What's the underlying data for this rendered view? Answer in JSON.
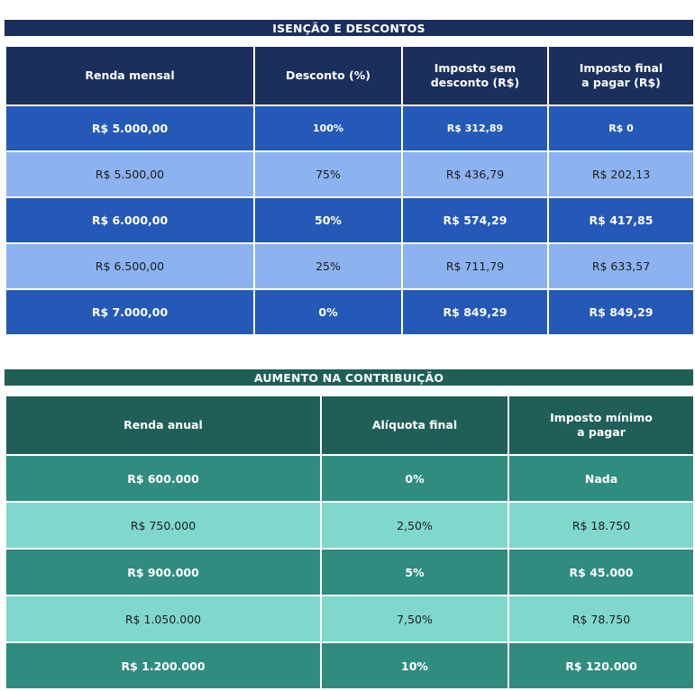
{
  "section1": {
    "title": "ISENÇÃO E DESCONTOS",
    "headers": [
      "Renda mensal",
      "Desconto (%)",
      "Imposto sem\ndesconto (R$)",
      "Imposto final\na pagar (R$)"
    ],
    "rows": [
      {
        "style": "dark",
        "cells": [
          "R$ 5.000,00",
          "100%",
          "R$ 312,89",
          "R$ 0"
        ]
      },
      {
        "style": "light",
        "cells": [
          "R$ 5.500,00",
          "75%",
          "R$ 436,79",
          "R$ 202,13"
        ]
      },
      {
        "style": "dark",
        "cells": [
          "R$ 6.000,00",
          "50%",
          "R$ 574,29",
          "R$ 417,85"
        ]
      },
      {
        "style": "light",
        "cells": [
          "R$ 6.500,00",
          "25%",
          "R$ 711,79",
          "R$ 633,57"
        ]
      },
      {
        "style": "dark",
        "cells": [
          "R$ 7.000,00",
          "0%",
          "R$ 849,29",
          "R$ 849,29"
        ]
      }
    ],
    "colors": {
      "header": "#1a2f5c",
      "dark": "#2559b7",
      "light": "#8cb3f0"
    }
  },
  "section2": {
    "title": "AUMENTO NA CONTRIBUIÇÃO",
    "headers": [
      "Renda anual",
      "Alíquota final",
      "Imposto mínimo\na pagar"
    ],
    "rows": [
      {
        "style": "dark",
        "cells": [
          "R$ 600.000",
          "0%",
          "Nada"
        ]
      },
      {
        "style": "light",
        "cells": [
          "R$ 750.000",
          "2,50%",
          "R$ 18.750"
        ]
      },
      {
        "style": "dark",
        "cells": [
          "R$ 900.000",
          "5%",
          "R$ 45.000"
        ]
      },
      {
        "style": "light",
        "cells": [
          "R$ 1.050.000",
          "7,50%",
          "R$ 78.750"
        ]
      },
      {
        "style": "dark",
        "cells": [
          "R$ 1.200.000",
          "10%",
          "R$ 120.000"
        ]
      }
    ],
    "colors": {
      "header": "#1f5f57",
      "dark": "#2f8c7e",
      "light": "#80d8cc"
    }
  }
}
